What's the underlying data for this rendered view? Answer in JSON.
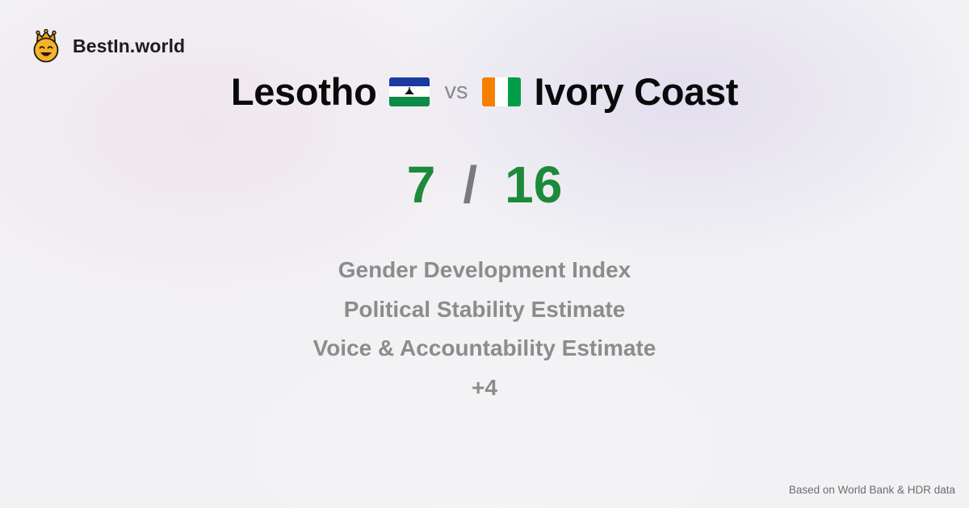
{
  "brand": {
    "name": "BestIn.world",
    "logo_icon": "crowned-smiley-icon"
  },
  "comparison": {
    "country_a": "Lesotho",
    "country_b": "Ivory Coast",
    "vs_label": "vs",
    "flag_a_icon": "lesotho-flag-icon",
    "flag_b_icon": "ivory-coast-flag-icon"
  },
  "scores": {
    "a": "7",
    "separator": "/",
    "b": "16",
    "color": "#1d8a3a"
  },
  "metrics": [
    "Gender Development Index",
    "Political Stability Estimate",
    "Voice & Accountability Estimate",
    "+4"
  ],
  "footnote": "Based on World Bank & HDR data"
}
